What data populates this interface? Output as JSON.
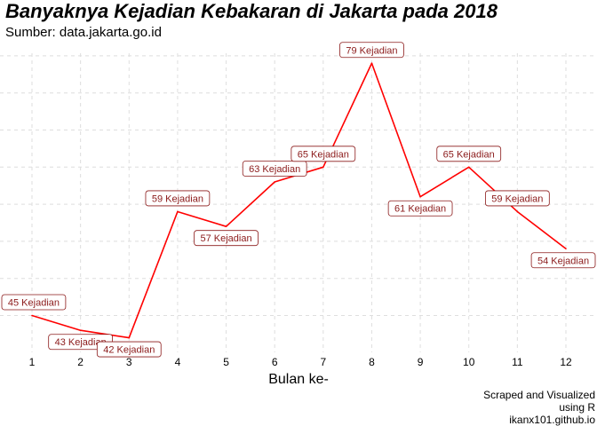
{
  "header": {
    "title": "Banyaknya Kejadian Kebakaran di Jakarta pada 2018",
    "subtitle": "Sumber: data.jakarta.go.id"
  },
  "caption": {
    "line1": "Scraped and Visualized",
    "line2": "using R",
    "line3": "ikanx101.github.io"
  },
  "colors": {
    "line": "#ff0000",
    "label_text": "#8b1a1a",
    "label_border": "#8b1a1a",
    "grid": "#dedede"
  },
  "chart_data": {
    "type": "line",
    "title": "Banyaknya Kejadian Kebakaran di Jakarta pada 2018",
    "subtitle": "Sumber: data.jakarta.go.id",
    "xlabel": "Bulan ke-",
    "ylabel": "",
    "x": [
      1,
      2,
      3,
      4,
      5,
      6,
      7,
      8,
      9,
      10,
      11,
      12
    ],
    "values": [
      45,
      43,
      42,
      59,
      57,
      63,
      65,
      79,
      61,
      65,
      59,
      54
    ],
    "point_labels": [
      "45 Kejadian",
      "43 Kejadian",
      "42 Kejadian",
      "59 Kejadian",
      "57 Kejadian",
      "63 Kejadian",
      "65 Kejadian",
      "79 Kejadian",
      "61 Kejadian",
      "65 Kejadian",
      "59 Kejadian",
      "54 Kejadian"
    ],
    "label_position": [
      "above",
      "below",
      "below",
      "above",
      "below",
      "above",
      "above",
      "above",
      "below",
      "above",
      "above",
      "below"
    ],
    "xlim": [
      1,
      12
    ],
    "ylim": [
      40,
      80
    ],
    "y_tick_labels_visible": false,
    "grid": true
  }
}
